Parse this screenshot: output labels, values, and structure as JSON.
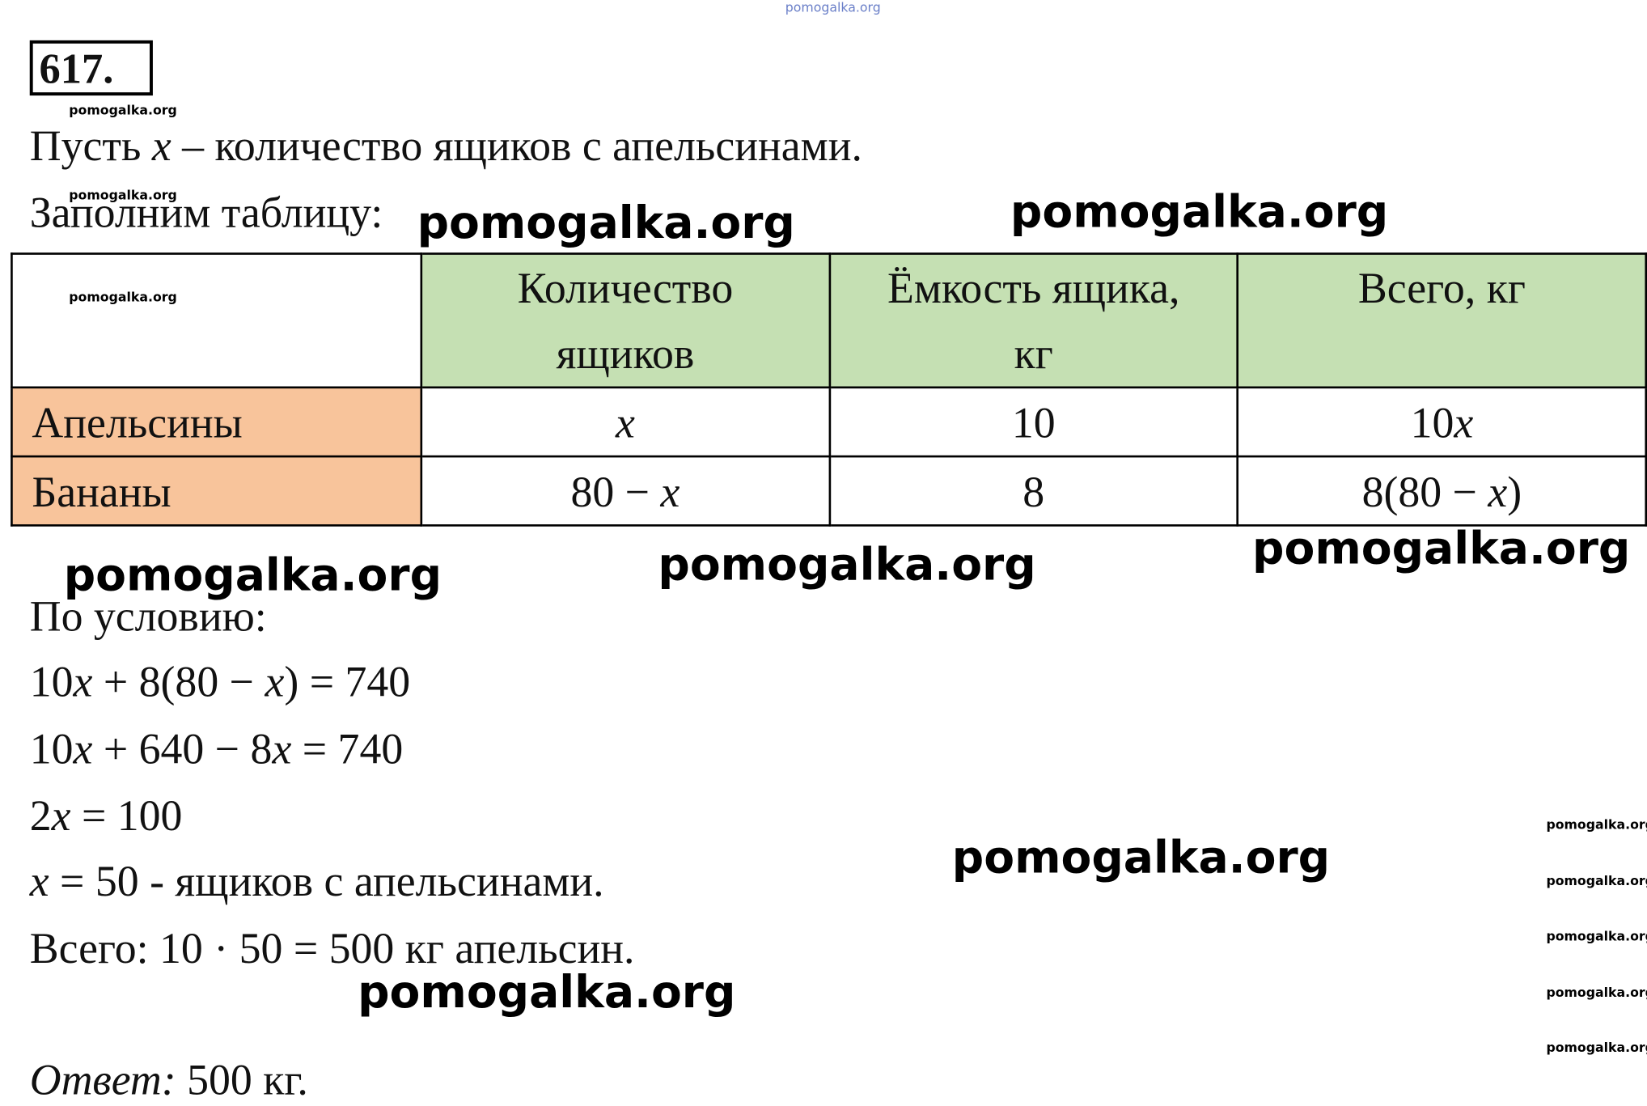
{
  "header": {
    "problem_number": "617."
  },
  "lines": [
    [
      {
        "text": "Пусть "
      },
      {
        "text": "x",
        "italic": true
      },
      {
        "text": " – количество ящиков с апельсинами."
      }
    ],
    [
      {
        "text": "Заполним таблицу:"
      }
    ],
    [
      {
        "text": "По условию:"
      }
    ],
    [
      {
        "text": "10"
      },
      {
        "text": "x",
        "italic": true
      },
      {
        "text": " + 8(80 − "
      },
      {
        "text": "x",
        "italic": true
      },
      {
        "text": ") = 740"
      }
    ],
    [
      {
        "text": "10"
      },
      {
        "text": "x",
        "italic": true
      },
      {
        "text": " + 640 − 8"
      },
      {
        "text": "x",
        "italic": true
      },
      {
        "text": " = 740"
      }
    ],
    [
      {
        "text": "2"
      },
      {
        "text": "x",
        "italic": true
      },
      {
        "text": " = 100"
      }
    ],
    [
      {
        "text": "x",
        "italic": true
      },
      {
        "text": " = 50 - ящиков с апельсинами."
      }
    ],
    [
      {
        "text": "Всего: 10 · 50 = 500 кг апельсин."
      }
    ],
    [
      {
        "text": "Ответ:",
        "italic": true
      },
      {
        "text": " 500 кг."
      }
    ]
  ],
  "table": {
    "columns": [
      [
        "Количество",
        "ящиков"
      ],
      [
        "Ёмкость ящика,",
        "кг"
      ],
      [
        "Всего, кг"
      ]
    ],
    "rows": [
      {
        "label": "Апельсины",
        "cells": [
          [
            {
              "text": "x",
              "italic": true
            }
          ],
          [
            {
              "text": "10"
            }
          ],
          [
            {
              "text": "10"
            },
            {
              "text": "x",
              "italic": true
            }
          ]
        ]
      },
      {
        "label": "Бананы",
        "cells": [
          [
            {
              "text": "80 − "
            },
            {
              "text": "x",
              "italic": true
            }
          ],
          [
            {
              "text": "8"
            }
          ],
          [
            {
              "text": "8(80 − "
            },
            {
              "text": "x",
              "italic": true
            },
            {
              "text": ")"
            }
          ]
        ]
      }
    ]
  },
  "watermarks": [
    "pomogalka.org",
    "pomogalka.org",
    "pomogalka.org",
    "pomogalka.org",
    "pomogalka.org",
    "pomogalka.org",
    "pomogalka.org",
    "pomogalka.org",
    "pomogalka.org",
    "pomogalka.org",
    "pomogalka.org",
    "pomogalka.org",
    "pomogalka.org",
    "pomogalka.org",
    "pomogalka.org",
    "pomogalka.org"
  ]
}
